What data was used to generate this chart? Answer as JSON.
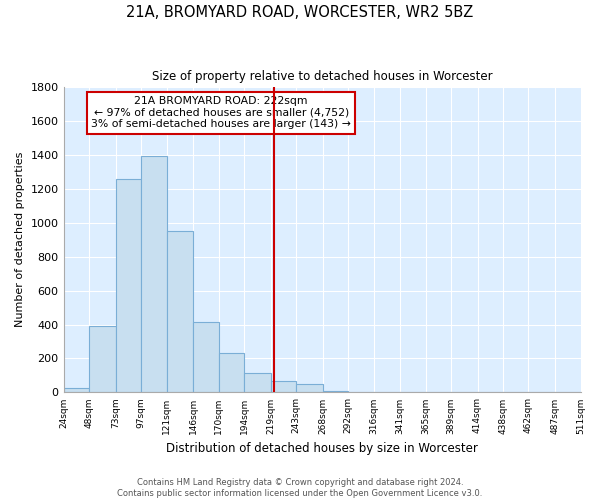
{
  "title": "21A, BROMYARD ROAD, WORCESTER, WR2 5BZ",
  "subtitle": "Size of property relative to detached houses in Worcester",
  "xlabel": "Distribution of detached houses by size in Worcester",
  "ylabel": "Number of detached properties",
  "bar_edges": [
    24,
    48,
    73,
    97,
    121,
    146,
    170,
    194,
    219,
    243,
    268,
    292,
    316,
    341,
    365,
    389,
    414,
    438,
    462,
    487,
    511
  ],
  "bar_heights": [
    25,
    390,
    1260,
    1395,
    950,
    415,
    235,
    115,
    70,
    50,
    10,
    5,
    5,
    3,
    2,
    2,
    1,
    1,
    1,
    1
  ],
  "tick_labels": [
    "24sqm",
    "48sqm",
    "73sqm",
    "97sqm",
    "121sqm",
    "146sqm",
    "170sqm",
    "194sqm",
    "219sqm",
    "243sqm",
    "268sqm",
    "292sqm",
    "316sqm",
    "341sqm",
    "365sqm",
    "389sqm",
    "414sqm",
    "438sqm",
    "462sqm",
    "487sqm",
    "511sqm"
  ],
  "bar_color": "#c8dff0",
  "bar_edge_color": "#7aaed6",
  "vline_x": 222,
  "vline_color": "#cc0000",
  "annotation_title": "21A BROMYARD ROAD: 222sqm",
  "annotation_line1": "← 97% of detached houses are smaller (4,752)",
  "annotation_line2": "3% of semi-detached houses are larger (143) →",
  "annotation_box_color": "#ffffff",
  "annotation_box_edge": "#cc0000",
  "ylim": [
    0,
    1800
  ],
  "yticks": [
    0,
    200,
    400,
    600,
    800,
    1000,
    1200,
    1400,
    1600,
    1800
  ],
  "footer_line1": "Contains HM Land Registry data © Crown copyright and database right 2024.",
  "footer_line2": "Contains public sector information licensed under the Open Government Licence v3.0.",
  "bg_color": "#ddeeff",
  "fig_bg_color": "#ffffff",
  "grid_color": "#ffffff"
}
